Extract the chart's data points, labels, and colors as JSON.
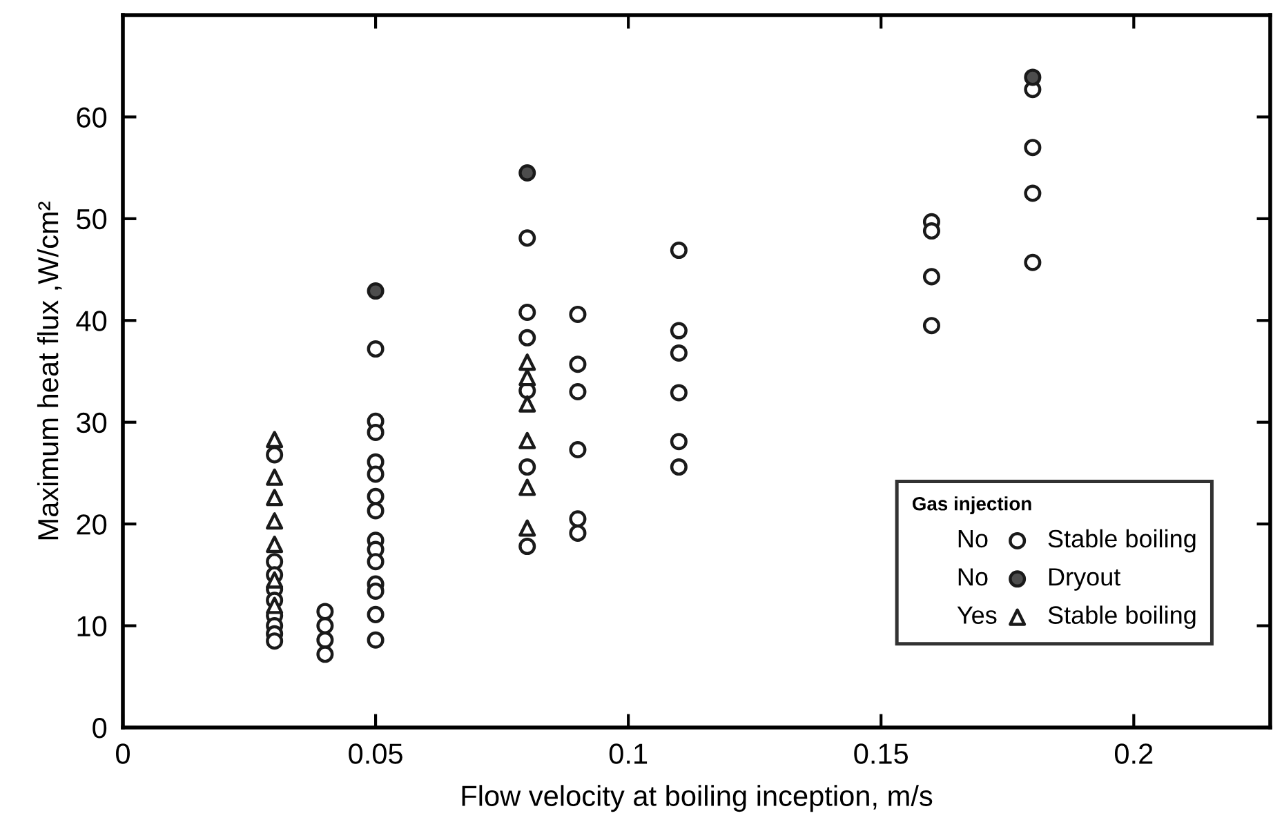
{
  "chart_data": {
    "type": "scatter",
    "xlabel": "Flow velocity at boiling inception, m/s",
    "ylabel": "Maximum heat flux ,W/cm²",
    "legend_title": "Gas injection",
    "annotations": [
      "No",
      "No",
      "Yes"
    ],
    "xlim": [
      0,
      0.227
    ],
    "ylim": [
      0,
      70
    ],
    "xticks": [
      0,
      0.05,
      0.1,
      0.15,
      0.2
    ],
    "yticks": [
      0,
      10,
      20,
      30,
      40,
      50,
      60
    ],
    "grid": false,
    "legend": "bottom right",
    "series": [
      {
        "name": "Stable boiling",
        "marker": "circle",
        "color": "#ffffff",
        "x": [
          0.03,
          0.03,
          0.03,
          0.03,
          0.03,
          0.03,
          0.03,
          0.03,
          0.03,
          0.04,
          0.04,
          0.04,
          0.04,
          0.05,
          0.05,
          0.05,
          0.05,
          0.05,
          0.05,
          0.05,
          0.05,
          0.05,
          0.05,
          0.05,
          0.05,
          0.05,
          0.05,
          0.08,
          0.08,
          0.08,
          0.08,
          0.08,
          0.08,
          0.09,
          0.09,
          0.09,
          0.09,
          0.09,
          0.09,
          0.11,
          0.11,
          0.11,
          0.11,
          0.11,
          0.11,
          0.16,
          0.16,
          0.16,
          0.16,
          0.18,
          0.18,
          0.18,
          0.18
        ],
        "values": [
          26.8,
          16.3,
          15.0,
          13.6,
          12.5,
          11.0,
          10.0,
          9.2,
          8.5,
          11.4,
          10.0,
          8.6,
          7.2,
          37.2,
          30.1,
          29.0,
          26.1,
          24.9,
          22.7,
          21.3,
          18.4,
          17.5,
          16.3,
          14.1,
          13.4,
          11.1,
          8.6,
          48.1,
          40.8,
          38.3,
          33.1,
          25.6,
          17.8,
          40.6,
          35.7,
          33.0,
          27.3,
          20.5,
          19.1,
          46.9,
          39.0,
          36.8,
          32.9,
          28.1,
          25.6,
          49.7,
          48.8,
          44.3,
          39.5,
          62.7,
          57.0,
          52.5,
          45.7
        ]
      },
      {
        "name": "Dryout",
        "marker": "circle",
        "color": "#4d4d4d",
        "x": [
          0.05,
          0.08,
          0.18
        ],
        "values": [
          42.9,
          54.5,
          63.9
        ]
      },
      {
        "name": "Stable boiling",
        "marker": "triangle",
        "color": "#ffffff",
        "x": [
          0.03,
          0.03,
          0.03,
          0.03,
          0.03,
          0.03,
          0.03,
          0.08,
          0.08,
          0.08,
          0.08,
          0.08,
          0.08
        ],
        "values": [
          28.3,
          24.6,
          22.6,
          20.3,
          18.0,
          14.5,
          12.0,
          35.9,
          34.4,
          31.8,
          28.2,
          23.6,
          19.6
        ]
      }
    ]
  }
}
